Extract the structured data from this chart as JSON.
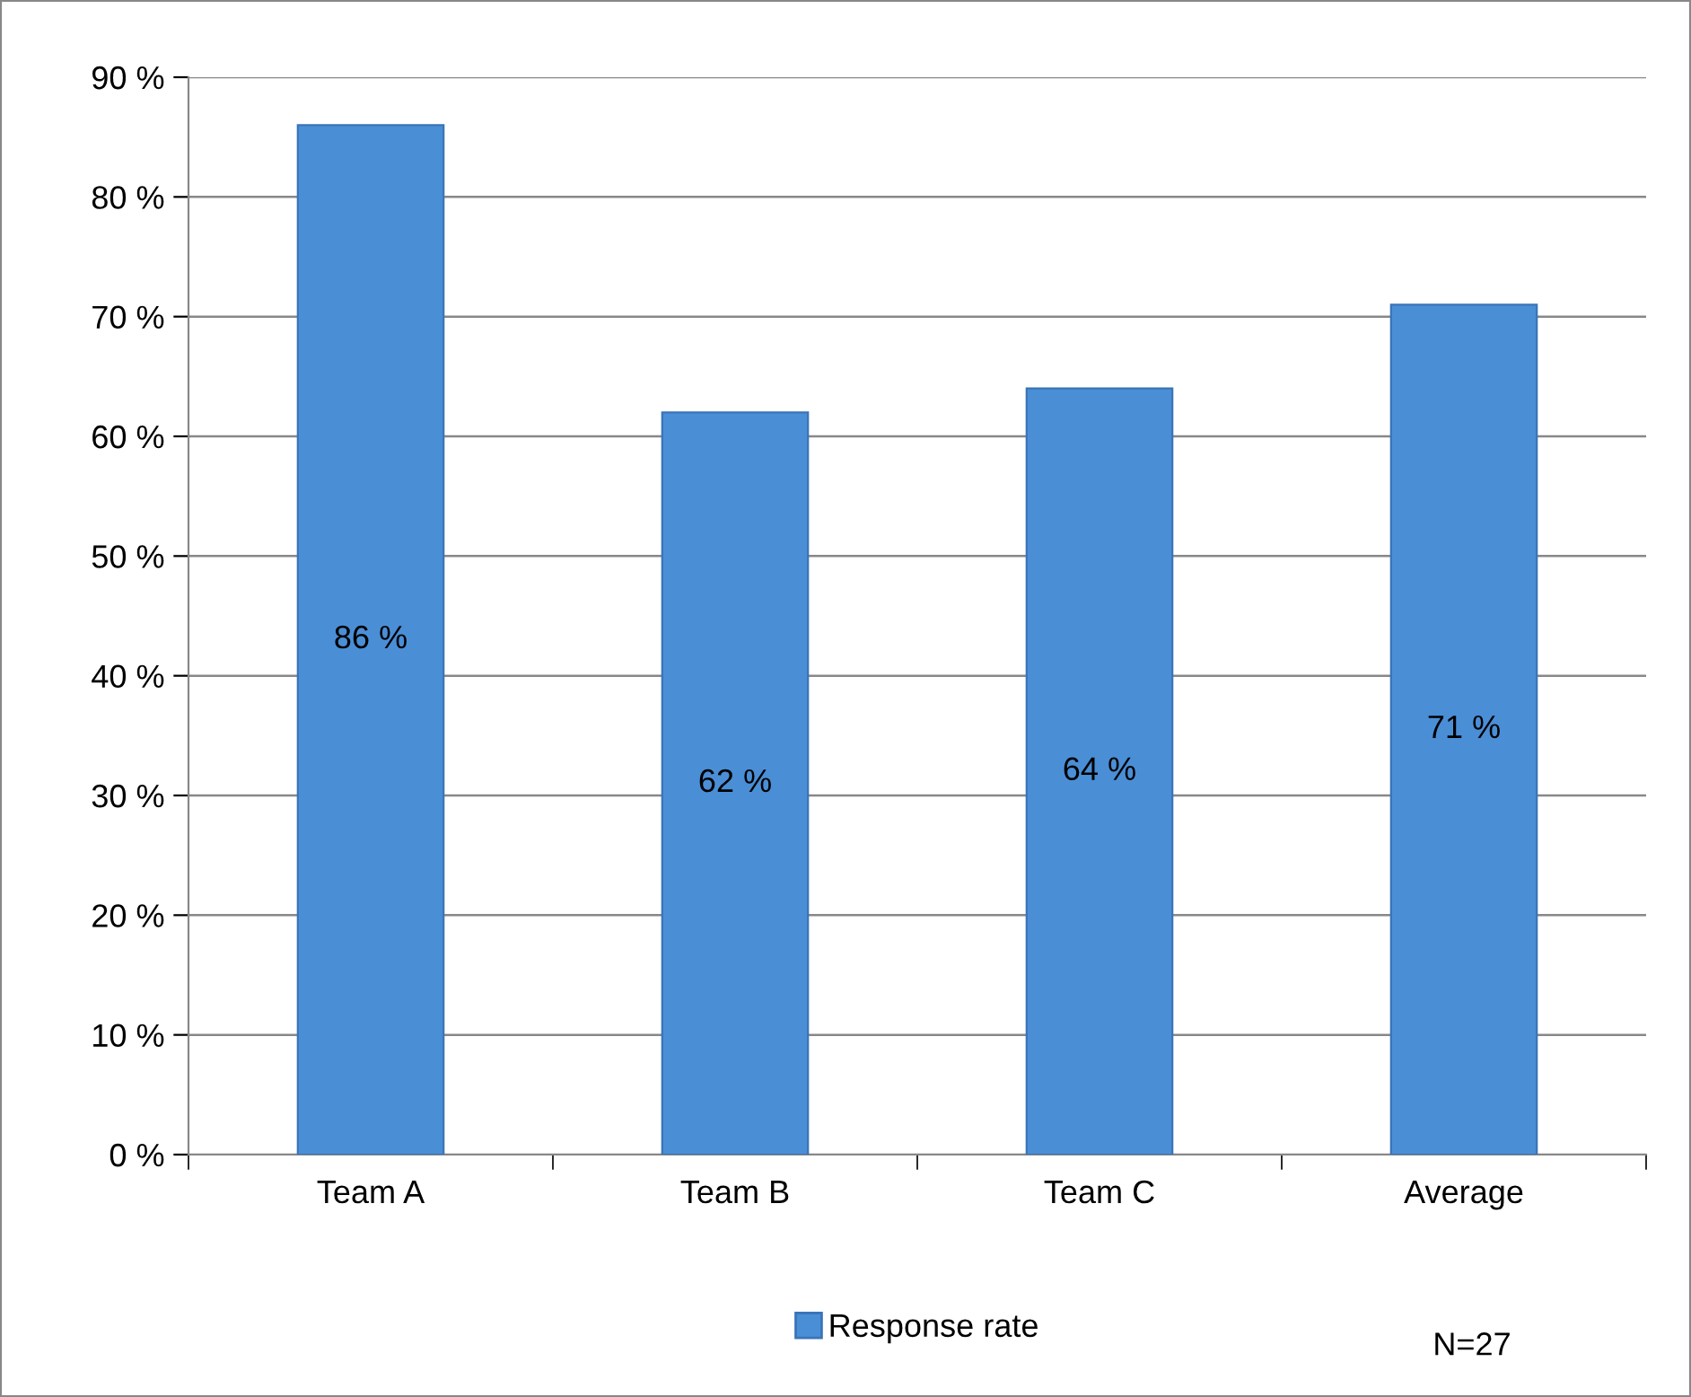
{
  "chart_data": {
    "type": "bar",
    "categories": [
      "Team A",
      "Team B",
      "Team C",
      "Average"
    ],
    "series": [
      {
        "name": "Response rate",
        "color": "#4a8ed6",
        "values": [
          86,
          62,
          64,
          71
        ],
        "value_labels": [
          "86 %",
          "62 %",
          "64 %",
          "71 %"
        ]
      }
    ],
    "ylim": [
      0,
      90
    ],
    "yticks": [
      {
        "value": 0,
        "label": "0 %"
      },
      {
        "value": 10,
        "label": "10 %"
      },
      {
        "value": 20,
        "label": "20 %"
      },
      {
        "value": 30,
        "label": "30 %"
      },
      {
        "value": 40,
        "label": "40 %"
      },
      {
        "value": 50,
        "label": "50 %"
      },
      {
        "value": 60,
        "label": "60 %"
      },
      {
        "value": 70,
        "label": "70 %"
      },
      {
        "value": 80,
        "label": "80 %"
      },
      {
        "value": 90,
        "label": "90 %"
      }
    ],
    "grid": "y",
    "legend": "bottom",
    "annotations": [
      "N=27"
    ]
  }
}
